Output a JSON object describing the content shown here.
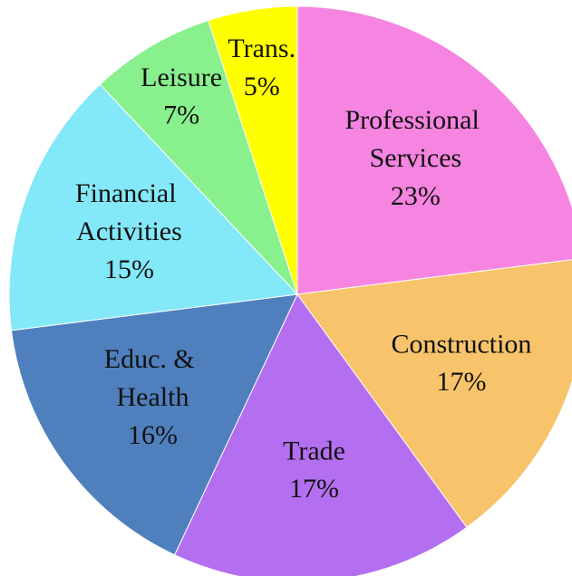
{
  "chart_data": {
    "type": "pie",
    "categories": [
      "Professional Services",
      "Construction",
      "Trade",
      "Educ. & Health",
      "Financial Activities",
      "Leisure",
      "Trans."
    ],
    "values": [
      23,
      17,
      17,
      16,
      15,
      7,
      5
    ],
    "value_labels": [
      "23%",
      "17%",
      "17%",
      "16%",
      "15%",
      "7%",
      "5%"
    ],
    "colors": [
      "#f684e1",
      "#f7c36b",
      "#b46ff0",
      "#4f80bd",
      "#83e8f8",
      "#88f08d",
      "#ffff00"
    ]
  }
}
